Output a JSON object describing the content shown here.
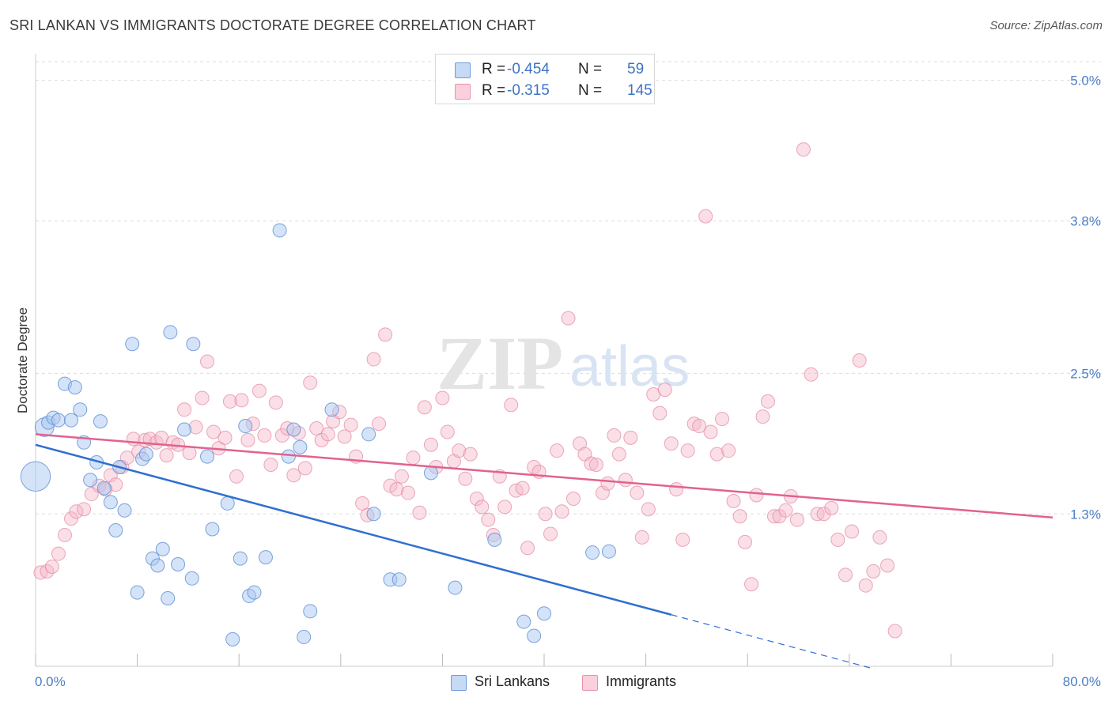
{
  "title": "SRI LANKAN VS IMMIGRANTS DOCTORATE DEGREE CORRELATION CHART",
  "source": "Source: ZipAtlas.com",
  "watermark": {
    "zip": "ZIP",
    "atlas": "atlas"
  },
  "legend": {
    "rows": [
      {
        "r_label": "R =",
        "r_value": "-0.454",
        "n_label": "N =",
        "n_value": "59"
      },
      {
        "r_label": "R =",
        "r_value": "-0.315",
        "n_label": "N =",
        "n_value": "145"
      }
    ]
  },
  "bottom_legend": {
    "series1": "Sri Lankans",
    "series2": "Immigrants"
  },
  "colors": {
    "blue_fill": "#a9c7ef",
    "blue_stroke": "#5b8fd6",
    "blue_line": "#2f6fd0",
    "pink_fill": "#f5b7c9",
    "pink_stroke": "#e58aa6",
    "pink_line": "#e2628e",
    "tick_text": "#4a7ec7",
    "grid": "#dddddd"
  },
  "chart_data": {
    "type": "scatter",
    "title": "SRI LANKAN VS IMMIGRANTS DOCTORATE DEGREE CORRELATION CHART",
    "xlabel": "",
    "ylabel": "Doctorate Degree",
    "xlim": [
      0,
      80
    ],
    "ylim": [
      0,
      5.2
    ],
    "x_tick_labels": [
      "0.0%",
      "80.0%"
    ],
    "y_ticks": [
      1.3,
      2.5,
      3.8,
      5.0
    ],
    "y_tick_labels": [
      "1.3%",
      "2.5%",
      "3.8%",
      "5.0%"
    ],
    "grid": "horizontal dashed",
    "legend_position": "top-center",
    "series": [
      {
        "name": "Sri Lankans",
        "r": -0.454,
        "n": 59,
        "trend": {
          "x0": 0,
          "y0": 1.89,
          "x1": 50,
          "y1": 0.44,
          "dashed_to_x": 66
        },
        "points": [
          [
            0.0,
            1.62,
            2.2
          ],
          [
            0.7,
            2.04,
            1.4
          ],
          [
            1.0,
            2.08,
            1.0
          ],
          [
            1.4,
            2.12,
            1.0
          ],
          [
            1.8,
            2.1,
            1.0
          ],
          [
            2.3,
            2.41,
            1.0
          ],
          [
            2.8,
            2.1,
            1.0
          ],
          [
            3.1,
            2.38,
            1.0
          ],
          [
            3.5,
            2.19,
            1.0
          ],
          [
            3.8,
            1.91,
            1.0
          ],
          [
            4.3,
            1.59,
            1.0
          ],
          [
            4.8,
            1.74,
            1.0
          ],
          [
            5.1,
            2.09,
            1.0
          ],
          [
            5.4,
            1.52,
            1.0
          ],
          [
            5.9,
            1.4,
            1.0
          ],
          [
            6.3,
            1.16,
            1.0
          ],
          [
            6.6,
            1.7,
            1.0
          ],
          [
            7.0,
            1.33,
            1.0
          ],
          [
            7.6,
            2.75,
            1.0
          ],
          [
            8.0,
            0.63,
            1.0
          ],
          [
            8.4,
            1.77,
            1.0
          ],
          [
            8.7,
            1.81,
            1.0
          ],
          [
            9.2,
            0.92,
            1.0
          ],
          [
            9.6,
            0.86,
            1.0
          ],
          [
            10.0,
            1.0,
            1.0
          ],
          [
            10.4,
            0.58,
            1.0
          ],
          [
            10.6,
            2.85,
            1.0
          ],
          [
            11.2,
            0.87,
            1.0
          ],
          [
            11.7,
            2.02,
            1.0
          ],
          [
            12.3,
            0.75,
            1.0
          ],
          [
            12.4,
            2.75,
            1.0
          ],
          [
            13.5,
            1.79,
            1.0
          ],
          [
            13.9,
            1.17,
            1.0
          ],
          [
            15.1,
            1.39,
            1.0
          ],
          [
            15.5,
            0.23,
            1.0
          ],
          [
            16.1,
            0.92,
            1.0
          ],
          [
            16.5,
            2.05,
            1.0
          ],
          [
            16.8,
            0.6,
            1.0
          ],
          [
            17.2,
            0.63,
            1.0
          ],
          [
            18.1,
            0.93,
            1.0
          ],
          [
            19.2,
            3.72,
            1.0
          ],
          [
            19.9,
            1.79,
            1.0
          ],
          [
            20.3,
            2.02,
            1.0
          ],
          [
            20.8,
            1.87,
            1.0
          ],
          [
            21.1,
            0.25,
            1.0
          ],
          [
            21.6,
            0.47,
            1.0
          ],
          [
            23.3,
            2.19,
            1.0
          ],
          [
            26.2,
            1.98,
            1.0
          ],
          [
            26.6,
            1.3,
            1.0
          ],
          [
            27.9,
            0.74,
            1.0
          ],
          [
            28.6,
            0.74,
            1.0
          ],
          [
            31.1,
            1.65,
            1.0
          ],
          [
            33.0,
            0.67,
            1.0
          ],
          [
            36.1,
            1.08,
            1.0
          ],
          [
            38.4,
            0.38,
            1.0
          ],
          [
            39.2,
            0.26,
            1.0
          ],
          [
            40.0,
            0.45,
            1.0
          ],
          [
            43.8,
            0.97,
            1.0
          ],
          [
            45.1,
            0.98,
            1.0
          ]
        ]
      },
      {
        "name": "Immigrants",
        "r": -0.315,
        "n": 145,
        "trend": {
          "x0": 0,
          "y0": 1.98,
          "x1": 80,
          "y1": 1.27
        },
        "points": [
          [
            0.4,
            0.8
          ],
          [
            0.9,
            0.81
          ],
          [
            1.3,
            0.85
          ],
          [
            1.8,
            0.96
          ],
          [
            2.3,
            1.12
          ],
          [
            2.8,
            1.26
          ],
          [
            3.2,
            1.32
          ],
          [
            3.8,
            1.34
          ],
          [
            4.4,
            1.47
          ],
          [
            5.0,
            1.54
          ],
          [
            5.5,
            1.51
          ],
          [
            5.9,
            1.63
          ],
          [
            6.3,
            1.55
          ],
          [
            6.8,
            1.7
          ],
          [
            7.2,
            1.78
          ],
          [
            7.7,
            1.94
          ],
          [
            8.1,
            1.83
          ],
          [
            8.6,
            1.93
          ],
          [
            9.0,
            1.94
          ],
          [
            9.5,
            1.91
          ],
          [
            9.9,
            1.95
          ],
          [
            10.3,
            1.8
          ],
          [
            10.8,
            1.91
          ],
          [
            11.2,
            1.89
          ],
          [
            11.7,
            2.19
          ],
          [
            12.1,
            1.82
          ],
          [
            12.6,
            2.04
          ],
          [
            13.1,
            2.29
          ],
          [
            13.5,
            2.6
          ],
          [
            14.0,
            2.0
          ],
          [
            14.4,
            1.86
          ],
          [
            14.9,
            1.95
          ],
          [
            15.3,
            2.26
          ],
          [
            15.8,
            1.62
          ],
          [
            16.2,
            2.27
          ],
          [
            16.7,
            1.93
          ],
          [
            17.1,
            2.07
          ],
          [
            17.6,
            2.35
          ],
          [
            18.0,
            1.97
          ],
          [
            18.5,
            1.72
          ],
          [
            18.9,
            2.25
          ],
          [
            19.4,
            1.97
          ],
          [
            19.8,
            2.03
          ],
          [
            20.3,
            1.63
          ],
          [
            20.7,
            1.99
          ],
          [
            21.2,
            1.69
          ],
          [
            21.6,
            2.42
          ],
          [
            22.1,
            2.03
          ],
          [
            22.5,
            1.93
          ],
          [
            23.0,
            1.98
          ],
          [
            23.4,
            2.09
          ],
          [
            23.9,
            2.17
          ],
          [
            24.3,
            1.96
          ],
          [
            24.8,
            2.06
          ],
          [
            25.2,
            1.79
          ],
          [
            25.7,
            1.39
          ],
          [
            26.1,
            1.29
          ],
          [
            26.6,
            2.62
          ],
          [
            27.0,
            2.07
          ],
          [
            27.5,
            2.83
          ],
          [
            27.9,
            1.54
          ],
          [
            28.4,
            1.51
          ],
          [
            28.8,
            1.62
          ],
          [
            29.3,
            1.48
          ],
          [
            29.7,
            1.78
          ],
          [
            30.2,
            1.31
          ],
          [
            30.6,
            2.21
          ],
          [
            31.1,
            1.89
          ],
          [
            31.5,
            1.7
          ],
          [
            32.0,
            2.29
          ],
          [
            32.4,
            2.0
          ],
          [
            32.9,
            1.75
          ],
          [
            33.3,
            1.84
          ],
          [
            33.8,
            1.6
          ],
          [
            34.2,
            1.81
          ],
          [
            34.7,
            1.43
          ],
          [
            35.1,
            1.36
          ],
          [
            35.6,
            1.25
          ],
          [
            36.0,
            1.12
          ],
          [
            36.5,
            1.62
          ],
          [
            36.9,
            1.36
          ],
          [
            37.4,
            2.23
          ],
          [
            37.8,
            1.5
          ],
          [
            38.3,
            1.52
          ],
          [
            38.7,
            1.01
          ],
          [
            39.2,
            1.7
          ],
          [
            39.6,
            1.66
          ],
          [
            40.1,
            1.3
          ],
          [
            40.5,
            1.13
          ],
          [
            41.0,
            1.84
          ],
          [
            41.4,
            1.32
          ],
          [
            41.9,
            2.97
          ],
          [
            42.3,
            1.43
          ],
          [
            42.8,
            1.9
          ],
          [
            43.2,
            1.81
          ],
          [
            43.7,
            1.73
          ],
          [
            44.1,
            1.72
          ],
          [
            44.6,
            1.48
          ],
          [
            45.0,
            1.56
          ],
          [
            45.5,
            1.97
          ],
          [
            45.9,
            1.81
          ],
          [
            46.4,
            1.59
          ],
          [
            46.8,
            1.95
          ],
          [
            47.3,
            1.48
          ],
          [
            47.7,
            1.1
          ],
          [
            48.2,
            1.34
          ],
          [
            48.6,
            2.32
          ],
          [
            49.1,
            2.16
          ],
          [
            49.5,
            2.36
          ],
          [
            50.0,
            1.9
          ],
          [
            50.4,
            1.51
          ],
          [
            50.9,
            1.08
          ],
          [
            51.3,
            1.84
          ],
          [
            51.8,
            2.07
          ],
          [
            52.2,
            2.05
          ],
          [
            52.7,
            3.84
          ],
          [
            53.1,
            2.0
          ],
          [
            53.6,
            1.81
          ],
          [
            54.0,
            2.11
          ],
          [
            54.5,
            1.84
          ],
          [
            54.9,
            1.41
          ],
          [
            55.4,
            1.28
          ],
          [
            55.8,
            1.06
          ],
          [
            56.3,
            0.7
          ],
          [
            56.7,
            1.46
          ],
          [
            57.2,
            2.13
          ],
          [
            57.6,
            2.26
          ],
          [
            58.1,
            1.28
          ],
          [
            58.5,
            1.28
          ],
          [
            59.0,
            1.33
          ],
          [
            59.4,
            1.45
          ],
          [
            59.9,
            1.25
          ],
          [
            60.4,
            4.41
          ],
          [
            61.0,
            2.49
          ],
          [
            61.5,
            1.3
          ],
          [
            62.0,
            1.3
          ],
          [
            62.6,
            1.35
          ],
          [
            63.1,
            1.08
          ],
          [
            63.7,
            0.78
          ],
          [
            64.2,
            1.15
          ],
          [
            64.8,
            2.61
          ],
          [
            65.3,
            0.69
          ],
          [
            65.9,
            0.81
          ],
          [
            66.4,
            1.1
          ],
          [
            67.0,
            0.86
          ],
          [
            67.6,
            0.3
          ]
        ]
      }
    ]
  }
}
